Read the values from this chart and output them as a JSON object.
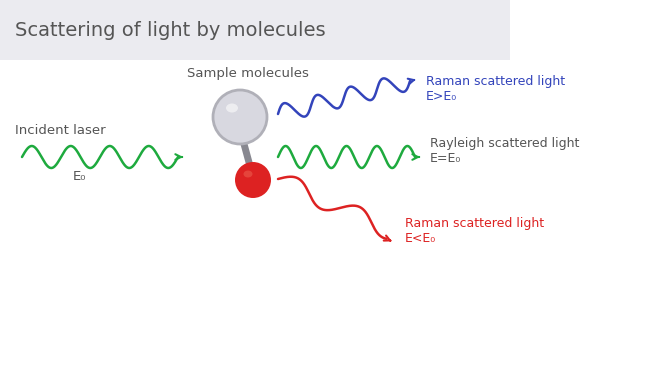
{
  "title": "Scattering of light by molecules",
  "title_fontsize": 14,
  "title_bg_color": "#ebebf0",
  "bg_color": "#ffffff",
  "incident_label": "Incident laser",
  "e0_label": "E₀",
  "sample_label": "Sample molecules",
  "raman_upper_label1": "Raman scattered light",
  "raman_upper_label2": "E>E₀",
  "rayleigh_label1": "Rayleigh scattered light",
  "rayleigh_label2": "E=E₀",
  "raman_lower_label1": "Raman scattered light",
  "raman_lower_label2": "E<E₀",
  "green_color": "#1eaa3e",
  "blue_color": "#3344bb",
  "red_color": "#dd2222",
  "dark_text_color": "#555555",
  "blue_text_color": "#3344bb",
  "red_text_color": "#dd2222",
  "molecule_circle_color": "#d8d8e0",
  "molecule_circle_edge": "#b0b0b8",
  "molecule_stem_color": "#888890",
  "molecule_ball_color": "#dd2222",
  "figsize": [
    6.58,
    3.79
  ],
  "dpi": 100
}
